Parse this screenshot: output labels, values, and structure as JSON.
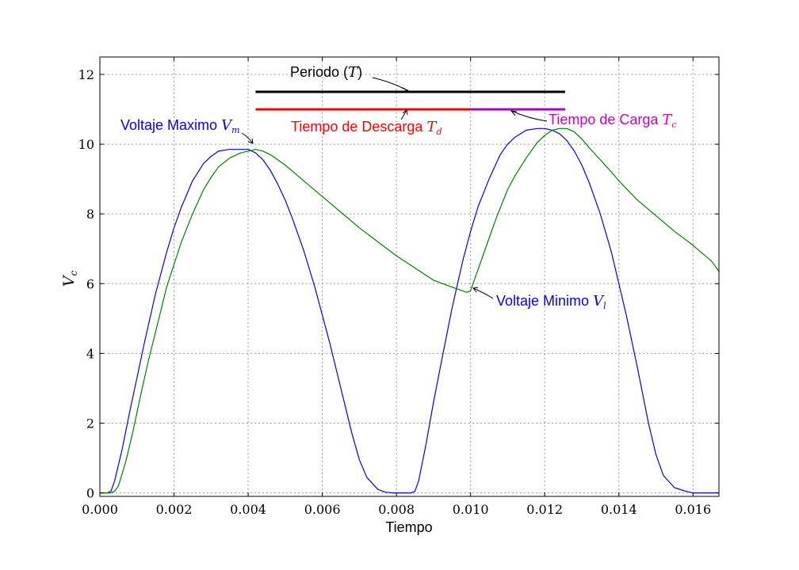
{
  "chart_data": {
    "type": "line",
    "xlabel": "Tiempo",
    "ylabel_main": "V",
    "ylabel_sub": "c",
    "xlim": [
      0.0,
      0.0167
    ],
    "ylim": [
      -0.1,
      12.5
    ],
    "xticks": [
      0.0,
      0.002,
      0.004,
      0.006,
      0.008,
      0.01,
      0.012,
      0.014,
      0.016
    ],
    "xtick_labels": [
      "0.000",
      "0.002",
      "0.004",
      "0.006",
      "0.008",
      "0.010",
      "0.012",
      "0.014",
      "0.016"
    ],
    "yticks": [
      0,
      2,
      4,
      6,
      8,
      10,
      12
    ],
    "ytick_labels": [
      "0",
      "2",
      "4",
      "6",
      "8",
      "10",
      "12"
    ],
    "grid": true,
    "series": [
      {
        "color": "#0000ff",
        "x": [
          0.0,
          0.0002,
          0.0003,
          0.0004,
          0.0006,
          0.0008,
          0.001,
          0.0012,
          0.0015,
          0.0018,
          0.002,
          0.0022,
          0.0025,
          0.0028,
          0.003,
          0.0032,
          0.0035,
          0.0038,
          0.004,
          0.0042,
          0.0044,
          0.0046,
          0.0048,
          0.005,
          0.0052,
          0.0055,
          0.0058,
          0.006,
          0.0062,
          0.0065,
          0.0068,
          0.007,
          0.0072,
          0.0075,
          0.0077,
          0.0079,
          0.008,
          0.0081,
          0.0082,
          0.0083,
          0.0084,
          0.0085,
          0.0086,
          0.0088,
          0.009,
          0.0092,
          0.0095,
          0.0098,
          0.01,
          0.0102,
          0.0105,
          0.0108,
          0.011,
          0.0112,
          0.0115,
          0.0118,
          0.012,
          0.0122,
          0.0124,
          0.0126,
          0.0128,
          0.013,
          0.0132,
          0.0135,
          0.0138,
          0.014,
          0.0142,
          0.0145,
          0.0148,
          0.015,
          0.0152,
          0.0155,
          0.0158,
          0.016,
          0.0161,
          0.0162,
          0.0163,
          0.0164,
          0.0165,
          0.0167
        ],
        "y": [
          0.0,
          0.0,
          0.05,
          0.35,
          1.25,
          2.3,
          3.3,
          4.3,
          5.7,
          6.9,
          7.6,
          8.2,
          8.95,
          9.45,
          9.65,
          9.8,
          9.85,
          9.85,
          9.85,
          9.75,
          9.55,
          9.25,
          8.85,
          8.4,
          7.85,
          6.95,
          5.9,
          5.1,
          4.3,
          3.0,
          1.7,
          0.95,
          0.45,
          0.1,
          0.02,
          0.0,
          0.0,
          0.0,
          0.0,
          0.0,
          0.0,
          0.05,
          0.35,
          1.4,
          2.6,
          3.7,
          5.3,
          6.7,
          7.5,
          8.2,
          9.0,
          9.7,
          10.0,
          10.2,
          10.4,
          10.45,
          10.45,
          10.4,
          10.3,
          10.1,
          9.8,
          9.4,
          8.9,
          8.0,
          6.9,
          6.0,
          5.1,
          3.6,
          2.0,
          1.1,
          0.5,
          0.15,
          0.05,
          0.0,
          0.0,
          0.0,
          0.0,
          0.0,
          0.0,
          0.0
        ]
      },
      {
        "color": "#008000",
        "x": [
          0.0,
          0.0003,
          0.0004,
          0.0005,
          0.0007,
          0.0009,
          0.0011,
          0.0013,
          0.0015,
          0.0018,
          0.002,
          0.0022,
          0.0025,
          0.0028,
          0.003,
          0.0032,
          0.0035,
          0.0038,
          0.004,
          0.0042,
          0.0044,
          0.0046,
          0.005,
          0.0055,
          0.006,
          0.0065,
          0.007,
          0.0075,
          0.008,
          0.0085,
          0.009,
          0.0095,
          0.0099,
          0.01,
          0.0101,
          0.0103,
          0.0105,
          0.0107,
          0.011,
          0.0112,
          0.0115,
          0.0118,
          0.012,
          0.0122,
          0.0124,
          0.0126,
          0.0128,
          0.013,
          0.0132,
          0.0135,
          0.0138,
          0.014,
          0.0145,
          0.015,
          0.0155,
          0.016,
          0.0165,
          0.0167
        ],
        "y": [
          0.0,
          0.0,
          0.05,
          0.2,
          0.9,
          1.8,
          2.8,
          3.75,
          4.6,
          5.9,
          6.55,
          7.2,
          8.0,
          8.7,
          9.05,
          9.35,
          9.6,
          9.75,
          9.8,
          9.85,
          9.8,
          9.7,
          9.4,
          8.95,
          8.5,
          8.05,
          7.6,
          7.2,
          6.8,
          6.45,
          6.1,
          5.9,
          5.75,
          5.8,
          6.1,
          6.7,
          7.3,
          7.9,
          8.7,
          9.1,
          9.6,
          10.05,
          10.25,
          10.4,
          10.45,
          10.45,
          10.35,
          10.15,
          9.9,
          9.55,
          9.2,
          8.95,
          8.4,
          7.95,
          7.5,
          7.1,
          6.65,
          6.35
        ]
      }
    ],
    "markers": [
      {
        "color": "#000000",
        "x_start": 0.0042,
        "x_end": 0.01255,
        "y": 11.5
      },
      {
        "color": "#ff0000",
        "x_start": 0.0042,
        "x_end": 0.01,
        "y": 11.0
      },
      {
        "color": "#aa00cc",
        "x_start": 0.01,
        "x_end": 0.01255,
        "y": 11.0
      }
    ],
    "annotations": [
      {
        "text": "Periodo (",
        "math": "T",
        "suffix": ")",
        "color": "#000000"
      },
      {
        "text": "Tiempo de Descarga ",
        "math": "T",
        "sub": "d",
        "color": "#ff0000"
      },
      {
        "text": "Tiempo de Carga ",
        "math": "T",
        "sub": "c",
        "color": "#cc00cc"
      },
      {
        "text": "Voltaje Maximo ",
        "math": "V",
        "sub": "m",
        "color": "#0000ff"
      },
      {
        "text": "Voltaje Minimo ",
        "math": "V",
        "sub": "l",
        "color": "#0000ff"
      }
    ]
  }
}
